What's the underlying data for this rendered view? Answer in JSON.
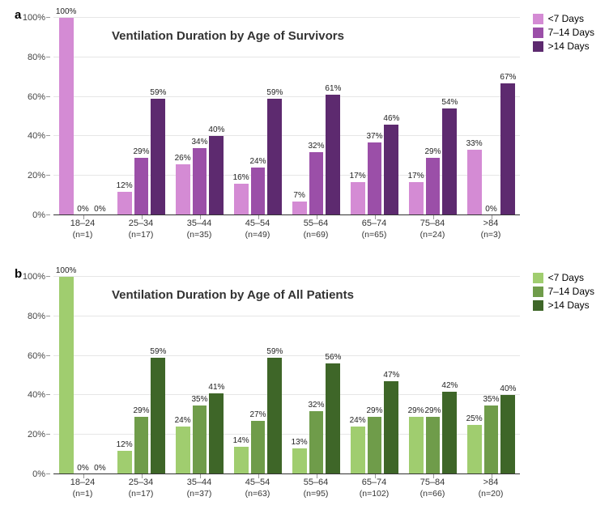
{
  "font_family": "Arial, Helvetica, sans-serif",
  "background_color": "#ffffff",
  "grid_color": "#e6e6e6",
  "axis_color": "#333333",
  "title_fontsize": 15,
  "label_fontsize": 11,
  "barlabel_fontsize": 10,
  "panels": [
    {
      "id": "a",
      "title": "Ventilation Duration by Age of Survivors",
      "legend": [
        {
          "label": "<7 Days",
          "color": "#d48bd4"
        },
        {
          "label": "7–14 Days",
          "color": "#9b4fa8"
        },
        {
          "label": ">14 Days",
          "color": "#5d2a6f"
        }
      ],
      "y_ticks": [
        0,
        20,
        40,
        60,
        80,
        100
      ],
      "ylim": [
        0,
        100
      ],
      "y_tick_suffix": "%",
      "categories": [
        {
          "label": "18–24",
          "n": "(n=1)"
        },
        {
          "label": "25–34",
          "n": "(n=17)"
        },
        {
          "label": "35–44",
          "n": "(n=35)"
        },
        {
          "label": "45–54",
          "n": "(n=49)"
        },
        {
          "label": "55–64",
          "n": "(n=69)"
        },
        {
          "label": "65–74",
          "n": "(n=65)"
        },
        {
          "label": "75–84",
          "n": "(n=24)"
        },
        {
          "label": ">84",
          "n": "(n=3)"
        }
      ],
      "series": [
        {
          "name": "<7 Days",
          "color": "#d48bd4",
          "values": [
            100,
            12,
            26,
            16,
            7,
            17,
            17,
            33
          ]
        },
        {
          "name": "7–14 Days",
          "color": "#9b4fa8",
          "values": [
            0,
            29,
            34,
            24,
            32,
            37,
            29,
            0
          ]
        },
        {
          "name": ">14 Days",
          "color": "#5d2a6f",
          "values": [
            0,
            59,
            40,
            59,
            61,
            46,
            54,
            67
          ]
        }
      ]
    },
    {
      "id": "b",
      "title": "Ventilation Duration by Age of All Patients",
      "legend": [
        {
          "label": "<7 Days",
          "color": "#a0cd6f"
        },
        {
          "label": "7–14 Days",
          "color": "#6f9c4a"
        },
        {
          "label": ">14 Days",
          "color": "#3e6628"
        }
      ],
      "y_ticks": [
        0,
        20,
        40,
        60,
        80,
        100
      ],
      "ylim": [
        0,
        100
      ],
      "y_tick_suffix": "%",
      "categories": [
        {
          "label": "18–24",
          "n": "(n=1)"
        },
        {
          "label": "25–34",
          "n": "(n=17)"
        },
        {
          "label": "35–44",
          "n": "(n=37)"
        },
        {
          "label": "45–54",
          "n": "(n=63)"
        },
        {
          "label": "55–64",
          "n": "(n=95)"
        },
        {
          "label": "65–74",
          "n": "(n=102)"
        },
        {
          "label": "75–84",
          "n": "(n=66)"
        },
        {
          "label": ">84",
          "n": "(n=20)"
        }
      ],
      "series": [
        {
          "name": "<7 Days",
          "color": "#a0cd6f",
          "values": [
            100,
            12,
            24,
            14,
            13,
            24,
            29,
            25
          ]
        },
        {
          "name": "7–14 Days",
          "color": "#6f9c4a",
          "values": [
            0,
            29,
            35,
            27,
            32,
            29,
            29,
            35
          ]
        },
        {
          "name": ">14 Days",
          "color": "#3e6628",
          "values": [
            0,
            59,
            41,
            59,
            56,
            47,
            42,
            40
          ]
        }
      ]
    }
  ]
}
